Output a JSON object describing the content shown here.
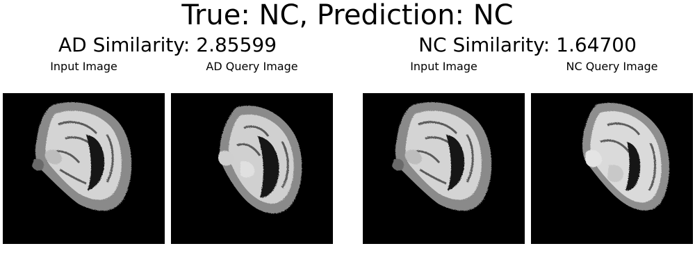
{
  "figure": {
    "title": "True: NC, Prediction: NC",
    "groups": [
      {
        "title": "AD Similarity: 2.85599",
        "panels": [
          {
            "label": "Input Image"
          },
          {
            "label": "AD Query Image"
          }
        ]
      },
      {
        "title": "NC Similarity: 1.64700",
        "panels": [
          {
            "label": "Input Image"
          },
          {
            "label": "NC Query Image"
          }
        ]
      }
    ]
  },
  "colors": {
    "background": "#000000",
    "gray_matter": "#8a8a8a",
    "white_matter": "#d8d8d8",
    "ventricle": "#151515"
  }
}
